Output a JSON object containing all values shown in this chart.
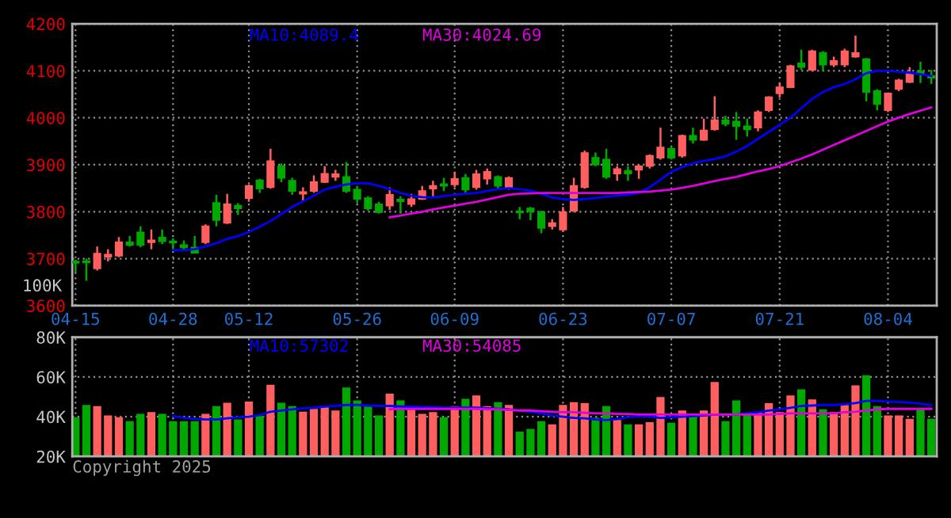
{
  "chart_data": [
    {
      "type": "candlestick",
      "categories": [
        "04-15",
        null,
        null,
        null,
        null,
        null,
        null,
        null,
        null,
        "04-28",
        null,
        null,
        null,
        null,
        null,
        null,
        "05-12",
        null,
        null,
        null,
        null,
        null,
        null,
        null,
        null,
        null,
        "05-26",
        null,
        null,
        null,
        null,
        null,
        null,
        null,
        null,
        "06-09",
        null,
        null,
        null,
        null,
        null,
        null,
        null,
        null,
        null,
        "06-23",
        null,
        null,
        null,
        null,
        null,
        null,
        null,
        null,
        null,
        "07-07",
        null,
        null,
        null,
        null,
        null,
        null,
        null,
        null,
        null,
        "07-21",
        null,
        null,
        null,
        null,
        null,
        null,
        null,
        null,
        null,
        "08-04",
        null,
        null,
        null,
        null
      ],
      "ohlc": [
        [
          3694,
          3698,
          3670,
          3691
        ],
        [
          3695,
          3700,
          3653,
          3692
        ],
        [
          3679,
          3726,
          3675,
          3711
        ],
        [
          3704,
          3720,
          3694,
          3709
        ],
        [
          3706,
          3746,
          3703,
          3735
        ],
        [
          3735,
          3748,
          3726,
          3729
        ],
        [
          3756,
          3769,
          3724,
          3729
        ],
        [
          3735,
          3762,
          3720,
          3739
        ],
        [
          3745,
          3762,
          3731,
          3737
        ],
        [
          3737,
          3743,
          3720,
          3734
        ],
        [
          3729,
          3739,
          3720,
          3724
        ],
        [
          3724,
          3748,
          3711,
          3712
        ],
        [
          3735,
          3773,
          3731,
          3769
        ],
        [
          3819,
          3836,
          3769,
          3782
        ],
        [
          3776,
          3838,
          3774,
          3816
        ],
        [
          3813,
          3818,
          3793,
          3807
        ],
        [
          3829,
          3858,
          3821,
          3855
        ],
        [
          3867,
          3870,
          3840,
          3849
        ],
        [
          3852,
          3934,
          3849,
          3908
        ],
        [
          3897,
          3903,
          3863,
          3872
        ],
        [
          3866,
          3872,
          3836,
          3844
        ],
        [
          3838,
          3852,
          3821,
          3842
        ],
        [
          3844,
          3877,
          3840,
          3863
        ],
        [
          3863,
          3897,
          3861,
          3881
        ],
        [
          3874,
          3889,
          3866,
          3880
        ],
        [
          3874,
          3906,
          3840,
          3844
        ],
        [
          3847,
          3855,
          3818,
          3827
        ],
        [
          3829,
          3833,
          3802,
          3807
        ],
        [
          3816,
          3821,
          3796,
          3799
        ],
        [
          3813,
          3852,
          3804,
          3836
        ],
        [
          3826,
          3833,
          3796,
          3822
        ],
        [
          3816,
          3838,
          3810,
          3827
        ],
        [
          3827,
          3855,
          3825,
          3844
        ],
        [
          3849,
          3866,
          3833,
          3855
        ],
        [
          3859,
          3872,
          3844,
          3855
        ],
        [
          3858,
          3885,
          3852,
          3870
        ],
        [
          3872,
          3880,
          3840,
          3847
        ],
        [
          3852,
          3889,
          3847,
          3880
        ],
        [
          3870,
          3892,
          3858,
          3885
        ],
        [
          3874,
          3877,
          3847,
          3855
        ],
        [
          3849,
          3875,
          3847,
          3872
        ],
        [
          3801,
          3810,
          3784,
          3798
        ],
        [
          3807,
          3810,
          3782,
          3801
        ],
        [
          3799,
          3802,
          3754,
          3765
        ],
        [
          3769,
          3784,
          3762,
          3776
        ],
        [
          3762,
          3810,
          3757,
          3799
        ],
        [
          3802,
          3872,
          3799,
          3855
        ],
        [
          3852,
          3930,
          3849,
          3925
        ],
        [
          3915,
          3926,
          3897,
          3900
        ],
        [
          3911,
          3934,
          3870,
          3874
        ],
        [
          3881,
          3897,
          3866,
          3891
        ],
        [
          3887,
          3897,
          3866,
          3881
        ],
        [
          3889,
          3900,
          3870,
          3897
        ],
        [
          3897,
          3922,
          3892,
          3919
        ],
        [
          3915,
          3979,
          3911,
          3937
        ],
        [
          3934,
          3939,
          3911,
          3915
        ],
        [
          3919,
          3964,
          3915,
          3962
        ],
        [
          3962,
          3979,
          3945,
          3953
        ],
        [
          3953,
          3998,
          3951,
          3973
        ],
        [
          3975,
          4046,
          3973,
          3995
        ],
        [
          3995,
          4004,
          3982,
          3987
        ],
        [
          3992,
          4012,
          3953,
          3982
        ],
        [
          3982,
          3998,
          3960,
          3975
        ],
        [
          3979,
          4016,
          3971,
          4012
        ],
        [
          4016,
          4046,
          4012,
          4044
        ],
        [
          4052,
          4074,
          4043,
          4065
        ],
        [
          4065,
          4113,
          4063,
          4110
        ],
        [
          4116,
          4145,
          4102,
          4108
        ],
        [
          4102,
          4145,
          4099,
          4142
        ],
        [
          4138,
          4142,
          4099,
          4113
        ],
        [
          4113,
          4130,
          4108,
          4121
        ],
        [
          4113,
          4147,
          4108,
          4142
        ],
        [
          4130,
          4175,
          4128,
          4138
        ],
        [
          4125,
          4127,
          4035,
          4055
        ],
        [
          4057,
          4061,
          4016,
          4029
        ],
        [
          4016,
          4054,
          4012,
          4052
        ],
        [
          4061,
          4083,
          4057,
          4080
        ],
        [
          4076,
          4108,
          4074,
          4096
        ],
        [
          4099,
          4119,
          4074,
          4094
        ],
        [
          4089,
          4102,
          4072,
          4085
        ]
      ],
      "colors": [
        "#00a800",
        "#00a800",
        "#ff5f5f",
        "#ff5f5f",
        "#ff5f5f",
        "#00a800",
        "#00a800",
        "#ff5f5f",
        "#00a800",
        "#00a800",
        "#00a800",
        "#00a800",
        "#ff5f5f",
        "#00a800",
        "#ff5f5f",
        "#00a800",
        "#ff5f5f",
        "#00a800",
        "#ff5f5f",
        "#00a800",
        "#00a800",
        "#ff5f5f",
        "#ff5f5f",
        "#ff5f5f",
        "#ff5f5f",
        "#00a800",
        "#00a800",
        "#00a800",
        "#00a800",
        "#ff5f5f",
        "#00a800",
        "#ff5f5f",
        "#ff5f5f",
        "#ff5f5f",
        "#00a800",
        "#ff5f5f",
        "#00a800",
        "#ff5f5f",
        "#ff5f5f",
        "#00a800",
        "#ff5f5f",
        "#00a800",
        "#00a800",
        "#00a800",
        "#ff5f5f",
        "#ff5f5f",
        "#ff5f5f",
        "#ff5f5f",
        "#00a800",
        "#00a800",
        "#ff5f5f",
        "#00a800",
        "#ff5f5f",
        "#ff5f5f",
        "#ff5f5f",
        "#00a800",
        "#ff5f5f",
        "#00a800",
        "#ff5f5f",
        "#ff5f5f",
        "#00a800",
        "#00a800",
        "#00a800",
        "#ff5f5f",
        "#ff5f5f",
        "#ff5f5f",
        "#ff5f5f",
        "#00a800",
        "#ff5f5f",
        "#00a800",
        "#ff5f5f",
        "#ff5f5f",
        "#ff5f5f",
        "#00a800",
        "#00a800",
        "#ff5f5f",
        "#ff5f5f",
        "#ff5f5f",
        "#00a800",
        "#00a800"
      ],
      "series": [
        {
          "name": "MA10:4089.4",
          "type": "line",
          "color": "#0000ff",
          "values": [
            null,
            null,
            null,
            null,
            null,
            null,
            null,
            null,
            null,
            3718,
            3718,
            3720,
            3726,
            3733,
            3742,
            3748,
            3757,
            3768,
            3780,
            3795,
            3810,
            3822,
            3834,
            3847,
            3853,
            3858,
            3861,
            3860,
            3855,
            3848,
            3840,
            3834,
            3831,
            3830,
            3833,
            3836,
            3838,
            3840,
            3844,
            3848,
            3850,
            3848,
            3845,
            3838,
            3830,
            3827,
            3825,
            3827,
            3829,
            3832,
            3834,
            3836,
            3840,
            3852,
            3868,
            3885,
            3895,
            3903,
            3908,
            3912,
            3918,
            3928,
            3940,
            3955,
            3970,
            3985,
            4000,
            4020,
            4040,
            4055,
            4065,
            4072,
            4082,
            4095,
            4100,
            4100,
            4098,
            4096,
            4093,
            4089
          ]
        },
        {
          "name": "MA30:4024.69",
          "type": "line",
          "color": "#e000e0",
          "values": [
            null,
            null,
            null,
            null,
            null,
            null,
            null,
            null,
            null,
            null,
            null,
            null,
            null,
            null,
            null,
            null,
            null,
            null,
            null,
            null,
            null,
            null,
            null,
            null,
            null,
            null,
            null,
            null,
            null,
            3788,
            3792,
            3796,
            3800,
            3805,
            3809,
            3813,
            3817,
            3821,
            3826,
            3831,
            3836,
            3838,
            3839,
            3840,
            3840,
            3840,
            3840,
            3840,
            3840,
            3840,
            3840,
            3841,
            3842,
            3843,
            3845,
            3847,
            3851,
            3855,
            3860,
            3865,
            3870,
            3874,
            3880,
            3886,
            3891,
            3897,
            3905,
            3913,
            3922,
            3932,
            3942,
            3952,
            3962,
            3972,
            3982,
            3992,
            4000,
            4008,
            4015,
            4022
          ]
        }
      ],
      "ylim": [
        3600,
        4200
      ],
      "yticks": [
        3600,
        3700,
        3800,
        3900,
        4000,
        4100,
        4200
      ],
      "grid": true,
      "annotations": [
        "100K"
      ]
    },
    {
      "type": "bar",
      "categories": [
        null,
        null,
        null,
        null,
        null,
        null,
        null,
        null,
        null,
        null,
        null,
        null,
        null,
        null,
        null,
        null,
        null,
        null,
        null,
        null,
        null,
        null,
        null,
        null,
        null,
        null,
        null,
        null,
        null,
        null,
        null,
        null,
        null,
        null,
        null,
        null,
        null,
        null,
        null,
        null,
        null,
        null,
        null,
        null,
        null,
        null,
        null,
        null,
        null,
        null,
        null,
        null,
        null,
        null,
        null,
        null,
        null,
        null,
        null,
        null,
        null,
        null,
        null,
        null,
        null,
        null,
        null,
        null,
        null,
        null,
        null,
        null,
        null,
        null,
        null,
        null,
        null,
        null,
        null,
        null
      ],
      "values": [
        39700,
        45900,
        45300,
        40600,
        39700,
        37700,
        41400,
        42300,
        41400,
        37700,
        37700,
        37700,
        41400,
        45300,
        47000,
        38600,
        47600,
        40300,
        56100,
        47000,
        45300,
        42500,
        43900,
        45300,
        43100,
        54700,
        48200,
        45100,
        40600,
        51600,
        48200,
        43900,
        41400,
        42300,
        39700,
        45300,
        49000,
        50700,
        45300,
        47300,
        45900,
        32400,
        33800,
        37700,
        36100,
        45900,
        47300,
        46800,
        39400,
        45300,
        38300,
        36100,
        36100,
        37200,
        49900,
        36900,
        43100,
        40300,
        43100,
        57500,
        37700,
        48200,
        41700,
        42300,
        46800,
        42300,
        50700,
        53800,
        48700,
        43700,
        42300,
        45900,
        55800,
        60900,
        45300,
        40600,
        40600,
        38900,
        44500,
        38900
      ],
      "colors": [
        "#00a800",
        "#00a800",
        "#ff5f5f",
        "#ff5f5f",
        "#ff5f5f",
        "#00a800",
        "#00a800",
        "#ff5f5f",
        "#00a800",
        "#00a800",
        "#00a800",
        "#00a800",
        "#ff5f5f",
        "#00a800",
        "#ff5f5f",
        "#00a800",
        "#ff5f5f",
        "#00a800",
        "#ff5f5f",
        "#00a800",
        "#00a800",
        "#ff5f5f",
        "#ff5f5f",
        "#ff5f5f",
        "#ff5f5f",
        "#00a800",
        "#00a800",
        "#00a800",
        "#00a800",
        "#ff5f5f",
        "#00a800",
        "#ff5f5f",
        "#ff5f5f",
        "#ff5f5f",
        "#00a800",
        "#ff5f5f",
        "#00a800",
        "#ff5f5f",
        "#ff5f5f",
        "#00a800",
        "#ff5f5f",
        "#00a800",
        "#00a800",
        "#00a800",
        "#ff5f5f",
        "#ff5f5f",
        "#ff5f5f",
        "#ff5f5f",
        "#00a800",
        "#00a800",
        "#ff5f5f",
        "#00a800",
        "#ff5f5f",
        "#ff5f5f",
        "#ff5f5f",
        "#00a800",
        "#ff5f5f",
        "#00a800",
        "#ff5f5f",
        "#ff5f5f",
        "#00a800",
        "#00a800",
        "#00a800",
        "#ff5f5f",
        "#ff5f5f",
        "#ff5f5f",
        "#ff5f5f",
        "#00a800",
        "#ff5f5f",
        "#00a800",
        "#ff5f5f",
        "#ff5f5f",
        "#ff5f5f",
        "#00a800",
        "#00a800",
        "#ff5f5f",
        "#ff5f5f",
        "#ff5f5f",
        "#00a800",
        "#00a800"
      ],
      "series": [
        {
          "name": "MA10:57302",
          "type": "line",
          "color": "#0000ff",
          "values": [
            null,
            null,
            null,
            null,
            null,
            null,
            null,
            null,
            null,
            40300,
            39400,
            38900,
            38600,
            38600,
            39200,
            39700,
            40000,
            40800,
            42500,
            43100,
            43700,
            44200,
            44500,
            45100,
            45400,
            45900,
            45900,
            45600,
            45400,
            45400,
            45100,
            45100,
            44800,
            44800,
            44500,
            44500,
            44500,
            44500,
            44200,
            43900,
            43700,
            43100,
            42500,
            41700,
            40600,
            40000,
            39400,
            39200,
            38600,
            38300,
            38900,
            39700,
            40300,
            40000,
            39400,
            39700,
            40000,
            40300,
            40600,
            41100,
            41100,
            41100,
            41700,
            42300,
            43100,
            43700,
            44500,
            45400,
            45600,
            45900,
            45900,
            46200,
            46800,
            47900,
            47900,
            47600,
            47300,
            47000,
            46500,
            45900
          ]
        },
        {
          "name": "MA30:54085",
          "type": "line",
          "color": "#e000e0",
          "values": [
            null,
            null,
            null,
            null,
            null,
            null,
            null,
            null,
            null,
            null,
            null,
            null,
            null,
            null,
            null,
            null,
            null,
            null,
            null,
            null,
            null,
            null,
            null,
            null,
            null,
            null,
            null,
            null,
            null,
            43700,
            43900,
            43900,
            43900,
            43900,
            43900,
            43900,
            43900,
            43900,
            43700,
            43700,
            43400,
            43100,
            43100,
            42800,
            42500,
            42300,
            42300,
            42000,
            41700,
            41700,
            41400,
            41400,
            41100,
            41100,
            41100,
            41100,
            41100,
            41100,
            41100,
            41100,
            41100,
            41100,
            41100,
            41100,
            41100,
            41400,
            41700,
            41700,
            41700,
            41700,
            41700,
            42300,
            42500,
            43100,
            43700,
            43900,
            43900,
            43900,
            43900,
            43900
          ]
        }
      ],
      "ylim": [
        20000,
        80000
      ],
      "yticks": [
        {
          "value": 20000,
          "label": "20K"
        },
        {
          "value": 40000,
          "label": "40K"
        },
        {
          "value": 60000,
          "label": "60K"
        },
        {
          "value": 80000,
          "label": "80K"
        }
      ],
      "grid": true,
      "tick_labels": "y",
      "annotations": [
        "Copyright 2025"
      ]
    }
  ]
}
